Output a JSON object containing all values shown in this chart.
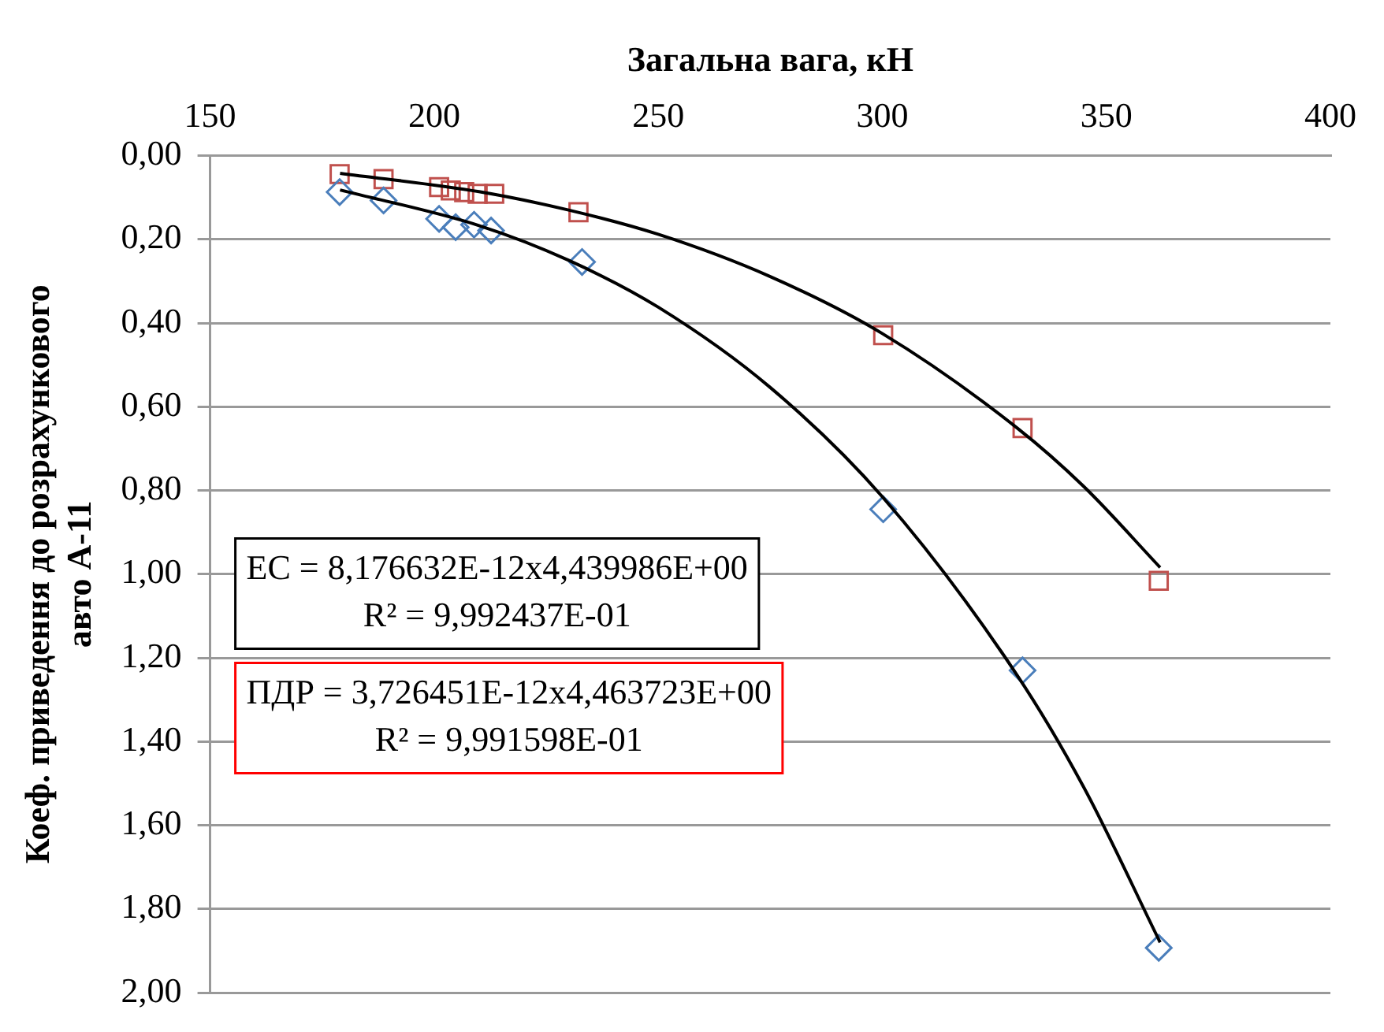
{
  "chart_data": {
    "type": "scatter",
    "xlabel": "Загальна вага, кН",
    "ylabel": "Коеф. приведення до розрахункового авто А-11",
    "xlim": [
      150,
      400
    ],
    "xticks": [
      150,
      200,
      250,
      300,
      350,
      400
    ],
    "ylim": [
      2,
      0
    ],
    "yticks": [
      {
        "value": 0,
        "label": "0,00"
      },
      {
        "value": 0.2,
        "label": "0,20"
      },
      {
        "value": 0.4,
        "label": "0,40"
      },
      {
        "value": 0.6,
        "label": "0,60"
      },
      {
        "value": 0.8,
        "label": "0,80"
      },
      {
        "value": 1,
        "label": "1,00"
      },
      {
        "value": 1.2,
        "label": "1,20"
      },
      {
        "value": 1.4,
        "label": "1,40"
      },
      {
        "value": 1.6,
        "label": "1,60"
      },
      {
        "value": 1.8,
        "label": "1,80"
      },
      {
        "value": 2,
        "label": "2,00"
      }
    ],
    "grid": "y",
    "legend": false,
    "series": [
      {
        "marker": "diamond",
        "color": "#4a7ebb",
        "x": [
          178.9,
          188.7,
          201.1,
          204.8,
          208.9,
          212.7,
          233,
          300.2,
          331.3,
          361.7
        ],
        "values": [
          0.087,
          0.107,
          0.151,
          0.171,
          0.165,
          0.179,
          0.254,
          0.845,
          1.23,
          1.893
        ]
      },
      {
        "marker": "square",
        "color": "#c0504d",
        "x": [
          178.9,
          188.7,
          201.1,
          203.7,
          206.7,
          209.7,
          213.4,
          232.2,
          300.2,
          331.3,
          361.7
        ],
        "values": [
          0.044,
          0.056,
          0.075,
          0.083,
          0.087,
          0.091,
          0.091,
          0.135,
          0.429,
          0.651,
          1.016
        ]
      },
      {
        "type": "line",
        "marker": "none",
        "color": "#000000",
        "x": [
          179,
          210,
          230,
          250,
          275,
          300,
          330,
          345,
          362
        ],
        "values": [
          0.082,
          0.167,
          0.25,
          0.362,
          0.554,
          0.815,
          1.24,
          1.51,
          1.88
        ]
      },
      {
        "type": "line",
        "marker": "none",
        "color": "#000000",
        "x": [
          179,
          210,
          230,
          250,
          275,
          300,
          330,
          345,
          362
        ],
        "values": [
          0.042,
          0.086,
          0.13,
          0.188,
          0.289,
          0.425,
          0.65,
          0.791,
          0.984
        ]
      }
    ],
    "annotations": [
      "EC = 8,176632E-12x4,439986E+00",
      "R² = 9,992437E-01",
      "ПДР = 3,726451E-12x4,463723E+00",
      "R² = 9,991598E-01"
    ]
  }
}
